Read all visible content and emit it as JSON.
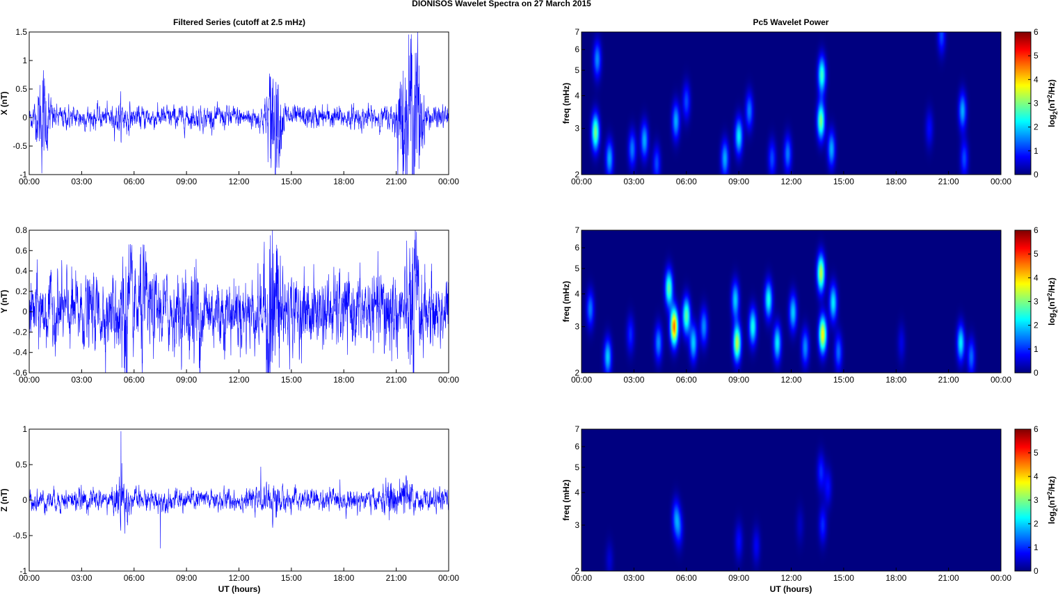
{
  "figure": {
    "title": "DIONISOS Wavelet Spectra on 27 March     2015",
    "left_title": "Filtered Series (cutoff at 2.5 mHz)",
    "right_title": "Pc5 Wavelet Power",
    "x_label": "UT (hours)"
  },
  "colors": {
    "series_line": "#0000ff",
    "background": "#ffffff",
    "axes": "#000000",
    "colormap": "jet"
  },
  "chart_data": [
    {
      "type": "line",
      "name": "panel-x",
      "ylabel": "X (nT)",
      "ylim": [
        -1,
        1.5
      ],
      "yticks": [
        "-1",
        "-0.5",
        "0",
        "0.5",
        "1",
        "1.5"
      ],
      "xlim": [
        0,
        24
      ],
      "xticks": [
        "00:00",
        "03:00",
        "06:00",
        "09:00",
        "12:00",
        "15:00",
        "18:00",
        "21:00",
        "00:00"
      ],
      "baseline_amplitude": 0.09,
      "bursts": [
        [
          0.8,
          0.55
        ],
        [
          5.3,
          0.12
        ],
        [
          13.9,
          0.5
        ],
        [
          14.2,
          0.35
        ],
        [
          21.3,
          0.55
        ],
        [
          21.9,
          0.95
        ],
        [
          22.2,
          0.6
        ]
      ],
      "extreme_points": [
        [
          0.8,
          0.58
        ],
        [
          13.8,
          -0.72
        ],
        [
          13.9,
          0.52
        ],
        [
          14.2,
          0.5
        ],
        [
          21.35,
          -0.65
        ],
        [
          21.4,
          0.82
        ],
        [
          21.9,
          1.1
        ],
        [
          21.95,
          -0.93
        ],
        [
          22.2,
          0.6
        ],
        [
          22.3,
          -0.9
        ]
      ]
    },
    {
      "type": "line",
      "name": "panel-y",
      "ylabel": "Y (nT)",
      "ylim": [
        -0.6,
        0.8
      ],
      "yticks": [
        "-0.6",
        "-0.4",
        "-0.2",
        "0",
        "0.2",
        "0.4",
        "0.6",
        "0.8"
      ],
      "xlim": [
        0,
        24
      ],
      "xticks": [
        "00:00",
        "03:00",
        "06:00",
        "09:00",
        "12:00",
        "15:00",
        "18:00",
        "21:00",
        "00:00"
      ],
      "baseline_amplitude": 0.16,
      "bursts": [
        [
          5.5,
          0.35
        ],
        [
          6.5,
          0.2
        ],
        [
          9.5,
          0.2
        ],
        [
          13.8,
          0.4
        ],
        [
          14.3,
          0.3
        ],
        [
          20.5,
          0.15
        ],
        [
          22.0,
          0.4
        ]
      ],
      "extreme_points": [
        [
          5.3,
          -0.55
        ],
        [
          5.7,
          0.66
        ],
        [
          13.8,
          0.75
        ],
        [
          13.9,
          -0.5
        ],
        [
          14.2,
          0.62
        ],
        [
          14.3,
          -0.55
        ],
        [
          22.1,
          0.57
        ],
        [
          21.8,
          -0.52
        ],
        [
          22.0,
          -0.58
        ]
      ]
    },
    {
      "type": "line",
      "name": "panel-z",
      "ylabel": "Z (nT)",
      "ylim": [
        -1,
        1
      ],
      "yticks": [
        "-1",
        "-0.5",
        "0",
        "0.5",
        "1"
      ],
      "xlim": [
        0,
        24
      ],
      "xticks": [
        "00:00",
        "03:00",
        "06:00",
        "09:00",
        "12:00",
        "15:00",
        "18:00",
        "21:00",
        "00:00"
      ],
      "xlabel": "UT (hours)",
      "baseline_amplitude": 0.07,
      "bursts": [
        [
          5.3,
          0.2
        ],
        [
          14.0,
          0.12
        ],
        [
          20.7,
          0.15
        ],
        [
          21.5,
          0.15
        ]
      ],
      "extreme_points": [
        [
          5.25,
          0.97
        ],
        [
          5.3,
          0.52
        ],
        [
          7.5,
          -0.68
        ],
        [
          13.25,
          0.47
        ],
        [
          21.2,
          0.3
        ]
      ]
    },
    {
      "type": "heatmap",
      "name": "spectrum-x",
      "ylabel": "freq (mHz)",
      "y_scale": "log",
      "ylim": [
        2,
        7
      ],
      "yticks": [
        "2",
        "3",
        "4",
        "5",
        "6",
        "7"
      ],
      "xlim": [
        0,
        24
      ],
      "xticks": [
        "00:00",
        "03:00",
        "06:00",
        "09:00",
        "12:00",
        "15:00",
        "18:00",
        "21:00",
        "00:00"
      ],
      "colorbar": {
        "label": "log2(nT2/Hz)",
        "range": [
          0,
          6
        ],
        "ticks": [
          "0",
          "1",
          "2",
          "3",
          "4",
          "5",
          "6"
        ]
      },
      "blobs": [
        [
          0.8,
          2.9,
          3.0
        ],
        [
          0.9,
          5.5,
          1.6
        ],
        [
          1.6,
          2.3,
          1.8
        ],
        [
          2.9,
          2.5,
          1.5
        ],
        [
          3.6,
          2.7,
          1.8
        ],
        [
          4.3,
          2.2,
          1.2
        ],
        [
          5.4,
          3.2,
          1.8
        ],
        [
          6.0,
          3.8,
          1.2
        ],
        [
          8.2,
          2.3,
          1.8
        ],
        [
          9.0,
          2.8,
          2.2
        ],
        [
          9.6,
          3.5,
          1.5
        ],
        [
          10.9,
          2.3,
          1.2
        ],
        [
          11.8,
          2.4,
          1.5
        ],
        [
          13.7,
          3.2,
          3.0
        ],
        [
          13.75,
          4.8,
          2.6
        ],
        [
          14.3,
          2.5,
          1.8
        ],
        [
          20.6,
          6.8,
          1.2
        ],
        [
          21.8,
          3.5,
          1.8
        ],
        [
          21.9,
          2.3,
          1.2
        ],
        [
          19.9,
          3.0,
          0.8
        ]
      ]
    },
    {
      "type": "heatmap",
      "name": "spectrum-y",
      "ylabel": "freq (mHz)",
      "y_scale": "log",
      "ylim": [
        2,
        7
      ],
      "yticks": [
        "2",
        "3",
        "4",
        "5",
        "6",
        "7"
      ],
      "xlim": [
        0,
        24
      ],
      "xticks": [
        "00:00",
        "03:00",
        "06:00",
        "09:00",
        "12:00",
        "15:00",
        "18:00",
        "21:00",
        "00:00"
      ],
      "colorbar": {
        "label": "log2(nT2/Hz)",
        "range": [
          0,
          6
        ],
        "ticks": [
          "0",
          "1",
          "2",
          "3",
          "4",
          "5",
          "6"
        ]
      },
      "blobs": [
        [
          0.5,
          3.5,
          1.5
        ],
        [
          1.5,
          2.3,
          2.0
        ],
        [
          2.8,
          2.8,
          1.0
        ],
        [
          4.4,
          2.6,
          1.6
        ],
        [
          5.3,
          3.0,
          4.6
        ],
        [
          5.0,
          4.2,
          2.8
        ],
        [
          6.0,
          3.3,
          2.8
        ],
        [
          6.4,
          2.6,
          2.0
        ],
        [
          7.0,
          3.0,
          1.6
        ],
        [
          8.9,
          2.6,
          3.4
        ],
        [
          8.8,
          3.8,
          2.0
        ],
        [
          9.8,
          3.0,
          2.4
        ],
        [
          10.7,
          3.8,
          2.4
        ],
        [
          11.2,
          2.6,
          2.2
        ],
        [
          12.1,
          3.4,
          2.0
        ],
        [
          12.8,
          2.5,
          1.6
        ],
        [
          13.8,
          2.8,
          3.8
        ],
        [
          13.7,
          4.8,
          3.4
        ],
        [
          14.4,
          3.7,
          2.2
        ],
        [
          14.7,
          2.4,
          1.4
        ],
        [
          18.3,
          2.6,
          0.6
        ],
        [
          21.7,
          2.6,
          2.2
        ],
        [
          22.3,
          2.3,
          1.4
        ]
      ]
    },
    {
      "type": "heatmap",
      "name": "spectrum-z",
      "ylabel": "freq (mHz)",
      "y_scale": "log",
      "ylim": [
        2,
        7
      ],
      "yticks": [
        "2",
        "3",
        "4",
        "5",
        "6",
        "7"
      ],
      "xlim": [
        0,
        24
      ],
      "xticks": [
        "00:00",
        "03:00",
        "06:00",
        "09:00",
        "12:00",
        "15:00",
        "18:00",
        "21:00",
        "00:00"
      ],
      "xlabel": "UT (hours)",
      "colorbar": {
        "label": "log2(nT2/Hz)",
        "range": [
          0,
          6
        ],
        "ticks": [
          "0",
          "1",
          "2",
          "3",
          "4",
          "5",
          "6"
        ]
      },
      "blobs": [
        [
          5.4,
          3.2,
          1.4
        ],
        [
          5.6,
          2.9,
          1.0
        ],
        [
          9.0,
          2.6,
          0.8
        ],
        [
          10.0,
          2.5,
          0.7
        ],
        [
          13.8,
          3.0,
          1.0
        ],
        [
          13.7,
          4.8,
          1.0
        ],
        [
          14.1,
          4.2,
          0.8
        ],
        [
          1.6,
          2.2,
          0.5
        ],
        [
          12.5,
          3.0,
          0.4
        ]
      ]
    }
  ]
}
